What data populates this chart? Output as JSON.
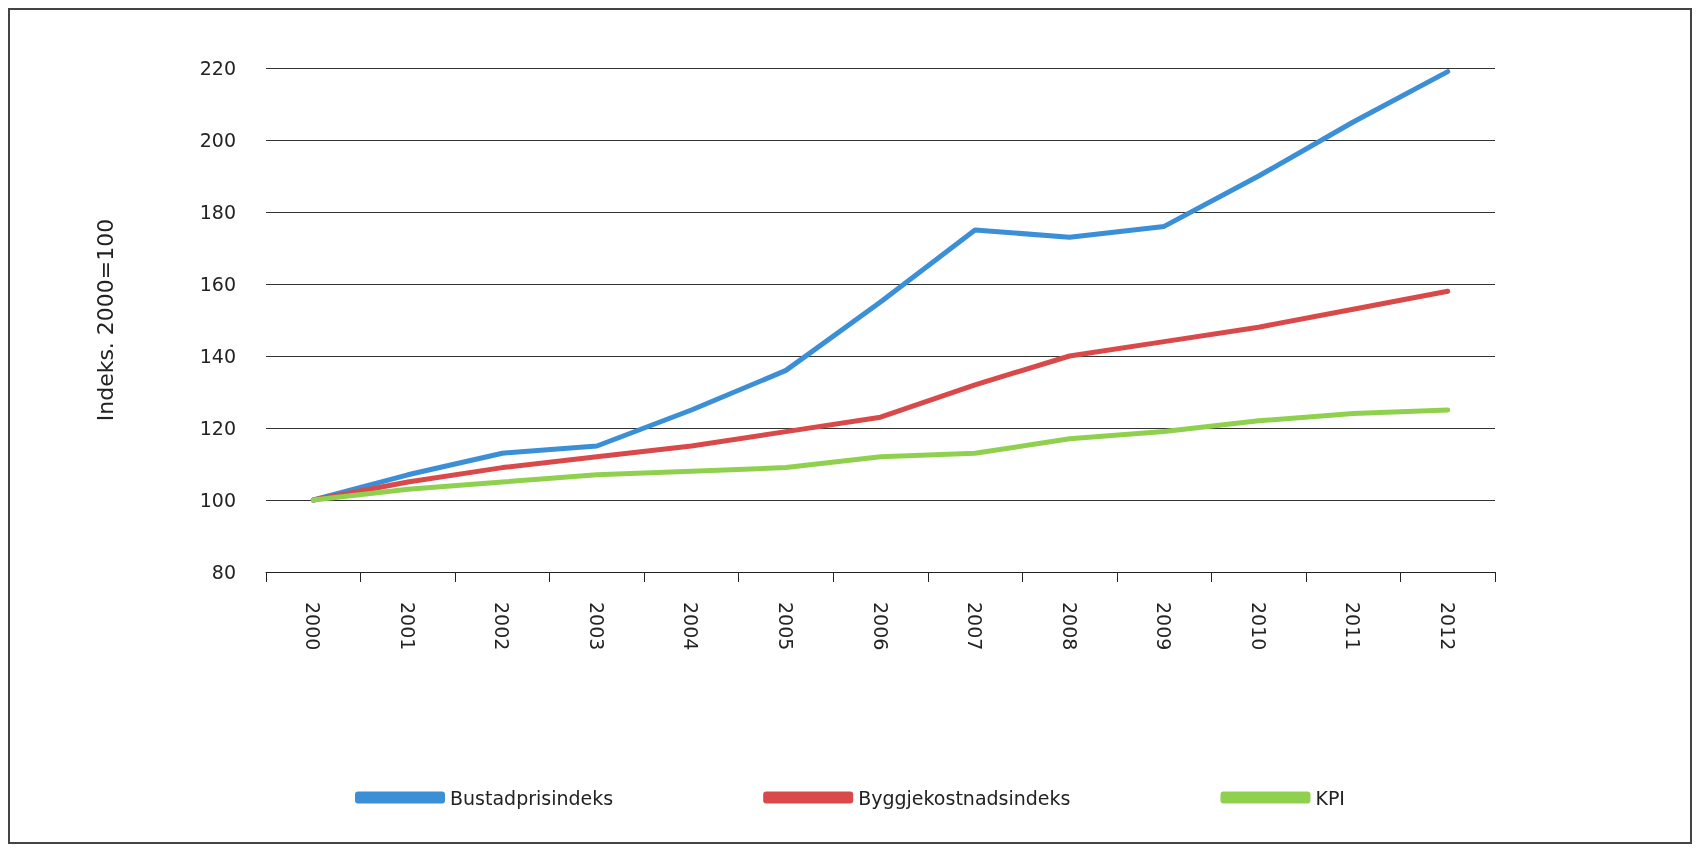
{
  "chart_data": {
    "type": "line",
    "ylabel": "Indeks. 2000=100",
    "categories": [
      "2000",
      "2001",
      "2002",
      "2003",
      "2004",
      "2005",
      "2006",
      "2007",
      "2008",
      "2009",
      "2010",
      "2011",
      "2012"
    ],
    "series": [
      {
        "name": "Bustadprisindeks",
        "color": "#3b8fd6",
        "values": [
          100,
          107,
          113,
          115,
          125,
          136,
          155,
          175,
          173,
          176,
          190,
          205,
          219
        ]
      },
      {
        "name": "Byggjekostnadsindeks",
        "color": "#d9494a",
        "values": [
          100,
          105,
          109,
          112,
          115,
          119,
          123,
          132,
          140,
          144,
          148,
          153,
          158
        ]
      },
      {
        "name": "KPI",
        "color": "#8fd14f",
        "values": [
          100,
          103,
          105,
          107,
          108,
          109,
          112,
          113,
          117,
          119,
          122,
          124,
          125
        ]
      }
    ],
    "ylim": [
      80,
      220
    ],
    "yticks": [
      80,
      100,
      120,
      140,
      160,
      180,
      200,
      220
    ],
    "grid": "y",
    "legend": "bottom",
    "marker": "none",
    "line_style": "solid"
  }
}
